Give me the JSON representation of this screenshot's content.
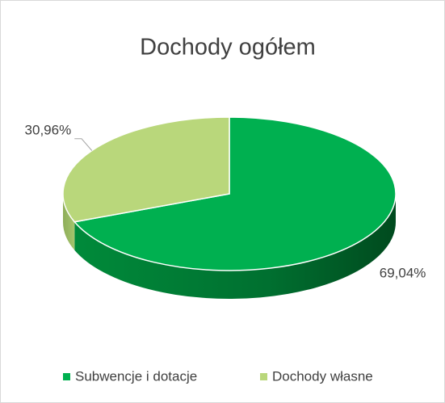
{
  "chart_data": {
    "type": "pie",
    "title": "Dochody ogółem",
    "categories": [
      "Subwencje i dotacje",
      "Dochody własne"
    ],
    "values": [
      69.04,
      30.96
    ],
    "value_labels": [
      "69,04%",
      "30,96%"
    ],
    "colors": [
      "#00b050",
      "#b9d77b"
    ],
    "legend": "bottom"
  }
}
